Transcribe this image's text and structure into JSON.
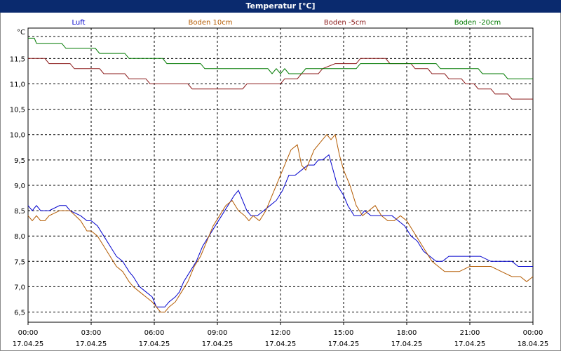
{
  "title": "Temperatur [°C]",
  "chart_data": {
    "type": "line",
    "title": "Temperatur [°C]",
    "ylabel": "°C",
    "ylim": [
      6.3,
      12.1
    ],
    "yticks": [
      "11,5",
      "11,0",
      "10,5",
      "10,0",
      "9,5",
      "9,0",
      "8,5",
      "8,0",
      "7,5",
      "7,0",
      "6,5"
    ],
    "ytick_values": [
      11.5,
      11.0,
      10.5,
      10.0,
      9.5,
      9.0,
      8.5,
      8.0,
      7.5,
      7.0,
      6.5
    ],
    "xlim": [
      0,
      24
    ],
    "xticks": [
      {
        "time": "00:00",
        "date": "17.04.25",
        "hour": 0
      },
      {
        "time": "03:00",
        "date": "17.04.25",
        "hour": 3
      },
      {
        "time": "06:00",
        "date": "17.04.25",
        "hour": 6
      },
      {
        "time": "09:00",
        "date": "17.04.25",
        "hour": 9
      },
      {
        "time": "12:00",
        "date": "17.04.25",
        "hour": 12
      },
      {
        "time": "15:00",
        "date": "17.04.25",
        "hour": 15
      },
      {
        "time": "18:00",
        "date": "17.04.25",
        "hour": 18
      },
      {
        "time": "21:00",
        "date": "17.04.25",
        "hour": 21
      },
      {
        "time": "00:00",
        "date": "18.04.25",
        "hour": 24
      }
    ],
    "grid": true,
    "legend_position": "top",
    "series": [
      {
        "name": "Luft",
        "color": "#0000cc",
        "x": [
          0,
          0.2,
          0.4,
          0.6,
          0.8,
          1.0,
          1.5,
          1.8,
          2.0,
          2.5,
          2.8,
          3.0,
          3.3,
          3.6,
          3.9,
          4.2,
          4.5,
          4.8,
          5.0,
          5.3,
          5.6,
          5.9,
          6.1,
          6.3,
          6.5,
          6.7,
          7.0,
          7.2,
          7.4,
          7.7,
          8.0,
          8.3,
          8.6,
          8.9,
          9.2,
          9.5,
          9.8,
          10.0,
          10.2,
          10.4,
          10.6,
          10.9,
          11.2,
          11.5,
          11.8,
          12.1,
          12.4,
          12.7,
          13.0,
          13.3,
          13.6,
          13.8,
          14.0,
          14.3,
          14.5,
          14.7,
          15.0,
          15.2,
          15.5,
          15.8,
          16.0,
          16.3,
          16.6,
          17.0,
          17.3,
          17.6,
          17.9,
          18.2,
          18.5,
          18.8,
          19.1,
          19.4,
          19.7,
          20.0,
          20.5,
          21.0,
          21.5,
          22.0,
          22.5,
          23.0,
          23.3,
          23.6,
          24.0
        ],
        "y": [
          8.6,
          8.5,
          8.6,
          8.5,
          8.5,
          8.5,
          8.6,
          8.6,
          8.5,
          8.4,
          8.3,
          8.3,
          8.2,
          8.0,
          7.8,
          7.6,
          7.5,
          7.3,
          7.2,
          7.0,
          6.9,
          6.8,
          6.6,
          6.6,
          6.6,
          6.7,
          6.8,
          6.9,
          7.1,
          7.3,
          7.5,
          7.8,
          8.0,
          8.2,
          8.4,
          8.6,
          8.8,
          8.9,
          8.7,
          8.5,
          8.4,
          8.4,
          8.5,
          8.6,
          8.7,
          8.9,
          9.2,
          9.2,
          9.3,
          9.4,
          9.4,
          9.5,
          9.5,
          9.6,
          9.3,
          9.0,
          8.8,
          8.6,
          8.4,
          8.4,
          8.5,
          8.4,
          8.4,
          8.4,
          8.4,
          8.3,
          8.2,
          8.0,
          7.9,
          7.7,
          7.6,
          7.5,
          7.5,
          7.6,
          7.6,
          7.6,
          7.6,
          7.5,
          7.5,
          7.5,
          7.4,
          7.4,
          7.4
        ]
      },
      {
        "name": "Boden 10cm",
        "color": "#b35a00",
        "x": [
          0,
          0.2,
          0.4,
          0.6,
          0.8,
          1.0,
          1.5,
          1.8,
          2.0,
          2.5,
          2.8,
          3.0,
          3.3,
          3.6,
          3.9,
          4.2,
          4.5,
          4.8,
          5.0,
          5.3,
          5.6,
          5.9,
          6.1,
          6.3,
          6.5,
          6.7,
          7.0,
          7.3,
          7.6,
          7.9,
          8.2,
          8.5,
          8.8,
          9.1,
          9.4,
          9.7,
          10.0,
          10.3,
          10.5,
          10.7,
          11.0,
          11.3,
          11.6,
          11.9,
          12.2,
          12.5,
          12.8,
          13.0,
          13.2,
          13.4,
          13.6,
          13.8,
          14.0,
          14.2,
          14.4,
          14.6,
          14.8,
          15.0,
          15.3,
          15.6,
          15.9,
          16.2,
          16.5,
          16.8,
          17.1,
          17.4,
          17.7,
          18.0,
          18.3,
          18.6,
          18.9,
          19.2,
          19.5,
          19.8,
          20.1,
          20.5,
          21.0,
          21.5,
          22.0,
          22.5,
          23.0,
          23.4,
          23.7,
          24.0
        ],
        "y": [
          8.4,
          8.3,
          8.4,
          8.3,
          8.3,
          8.4,
          8.5,
          8.5,
          8.5,
          8.3,
          8.1,
          8.1,
          8.0,
          7.8,
          7.6,
          7.4,
          7.3,
          7.1,
          7.0,
          6.9,
          6.8,
          6.7,
          6.6,
          6.5,
          6.5,
          6.6,
          6.7,
          6.9,
          7.1,
          7.4,
          7.6,
          7.9,
          8.2,
          8.4,
          8.6,
          8.7,
          8.5,
          8.4,
          8.3,
          8.4,
          8.3,
          8.5,
          8.8,
          9.1,
          9.4,
          9.7,
          9.8,
          9.4,
          9.3,
          9.5,
          9.7,
          9.8,
          9.9,
          10.0,
          9.9,
          10.0,
          9.6,
          9.3,
          9.0,
          8.6,
          8.4,
          8.5,
          8.6,
          8.4,
          8.3,
          8.3,
          8.4,
          8.3,
          8.1,
          7.9,
          7.7,
          7.5,
          7.4,
          7.3,
          7.3,
          7.3,
          7.4,
          7.4,
          7.4,
          7.3,
          7.2,
          7.2,
          7.1,
          7.2
        ]
      },
      {
        "name": "Boden -5cm",
        "color": "#8b1a1a",
        "x": [
          0,
          0.8,
          1.0,
          2.0,
          2.2,
          3.4,
          3.6,
          4.6,
          4.8,
          5.6,
          5.8,
          6.8,
          7.0,
          7.6,
          7.8,
          10.2,
          10.4,
          11.0,
          11.2,
          12.0,
          12.2,
          12.8,
          13.0,
          13.8,
          14.0,
          14.6,
          14.8,
          15.6,
          15.8,
          16.2,
          16.4,
          17.0,
          17.2,
          18.2,
          18.4,
          19.0,
          19.2,
          19.8,
          20.0,
          20.6,
          20.8,
          21.2,
          21.4,
          22.0,
          22.2,
          22.8,
          23.0,
          24.0
        ],
        "y": [
          11.5,
          11.5,
          11.4,
          11.4,
          11.3,
          11.3,
          11.2,
          11.2,
          11.1,
          11.1,
          11.0,
          11.0,
          11.0,
          11.0,
          10.9,
          10.9,
          11.0,
          11.0,
          11.0,
          11.0,
          11.1,
          11.1,
          11.2,
          11.2,
          11.3,
          11.4,
          11.4,
          11.4,
          11.5,
          11.5,
          11.5,
          11.5,
          11.4,
          11.4,
          11.3,
          11.3,
          11.2,
          11.2,
          11.1,
          11.1,
          11.0,
          11.0,
          10.9,
          10.9,
          10.8,
          10.8,
          10.7,
          10.7
        ]
      },
      {
        "name": "Boden -20cm",
        "color": "#007a00",
        "x": [
          0,
          0.3,
          0.4,
          1.6,
          1.8,
          3.2,
          3.4,
          4.6,
          4.8,
          6.4,
          6.6,
          8.2,
          8.4,
          11.4,
          11.6,
          11.8,
          12.0,
          12.2,
          12.4,
          13.0,
          13.2,
          15.6,
          15.8,
          19.4,
          19.6,
          21.4,
          21.6,
          22.6,
          22.8,
          24.0
        ],
        "y": [
          11.9,
          11.9,
          11.8,
          11.8,
          11.7,
          11.7,
          11.6,
          11.6,
          11.5,
          11.5,
          11.4,
          11.4,
          11.3,
          11.3,
          11.2,
          11.3,
          11.2,
          11.3,
          11.2,
          11.2,
          11.3,
          11.3,
          11.4,
          11.4,
          11.3,
          11.3,
          11.2,
          11.2,
          11.1,
          11.1
        ]
      }
    ]
  }
}
